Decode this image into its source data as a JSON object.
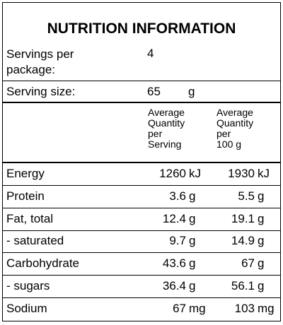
{
  "title": "NUTRITION INFORMATION",
  "servings": {
    "label": "Servings per\npackage:",
    "value": "4"
  },
  "serving_size": {
    "label": "Serving size:",
    "value": "65",
    "unit": "g"
  },
  "columns": [
    "Average\nQuantity\nper\nServing",
    "Average\nQuantity\nper\n100 g"
  ],
  "rows": [
    {
      "name": "Energy",
      "per_serving": "1260",
      "per_serving_unit": "kJ",
      "per_100g": "1930",
      "per_100g_unit": "kJ"
    },
    {
      "name": "Protein",
      "per_serving": "3.6",
      "per_serving_unit": "g",
      "per_100g": "5.5",
      "per_100g_unit": "g"
    },
    {
      "name": "Fat, total",
      "per_serving": "12.4",
      "per_serving_unit": "g",
      "per_100g": "19.1",
      "per_100g_unit": "g"
    },
    {
      "name": "- saturated",
      "per_serving": "9.7",
      "per_serving_unit": "g",
      "per_100g": "14.9",
      "per_100g_unit": "g"
    },
    {
      "name": "Carbohydrate",
      "per_serving": "43.6",
      "per_serving_unit": "g",
      "per_100g": "67",
      "per_100g_unit": "g"
    },
    {
      "name": "- sugars",
      "per_serving": "36.4",
      "per_serving_unit": "g",
      "per_100g": "56.1",
      "per_100g_unit": "g"
    },
    {
      "name": "Sodium",
      "per_serving": "67",
      "per_serving_unit": "mg",
      "per_100g": "103",
      "per_100g_unit": "mg"
    }
  ]
}
